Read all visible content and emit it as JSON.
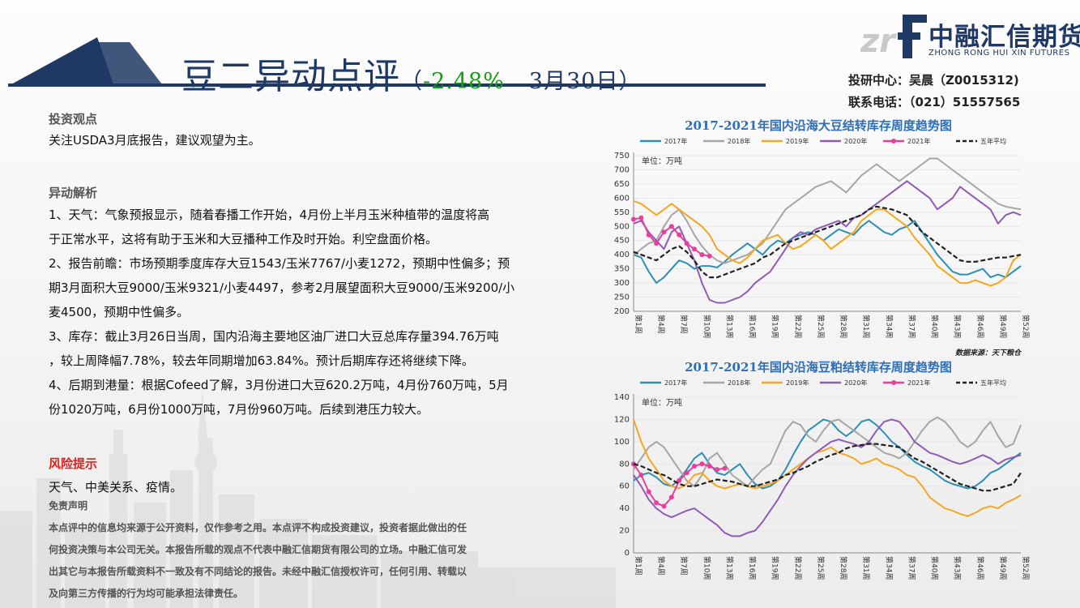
{
  "header": {
    "title": "豆二异动点评",
    "paren_open": "（",
    "change_pct": "-2.48%",
    "date": "3月30日",
    "paren_close": "）"
  },
  "logo": {
    "cn": "中融汇信期货",
    "en": "ZHONG RONG HUI XIN FUTURES"
  },
  "contact": {
    "analyst": "投研中心：吴晨（Z0015312)",
    "phone": "联系电话：（021）51557565"
  },
  "view": {
    "heading": "投资观点",
    "text": "关注USDA3月底报告，建议观望为主。"
  },
  "analysis": {
    "heading": "异动解析",
    "lines": [
      "1、天气：气象预报显示，随着春播工作开始，4月份上半月玉米种植带的温度将高",
      "于正常水平，这将有助于玉米和大豆播种工作及时开始。利空盘面价格。",
      "2、报告前瞻：市场预期季度库存大豆1543/玉米7767/小麦1272，预期中性偏多；预",
      "期3月面积大豆9000/玉米9321/小麦4497，参考2月展望面积大豆9000/玉米9200/小",
      "麦4500，预期中性偏多。",
      "3、库存：截止3月26日当周，国内沿海主要地区油厂进口大豆总库存量394.76万吨",
      "，较上周降幅7.78%，较去年同期增加63.84%。预计后期库存还将继续下降。",
      "4、后期到港量：根据Cofeed了解，3月份进口大豆620.2万吨，4月份760万吨，5月",
      "份1020万吨，6月份1000万吨，7月份960万吨。后续到港压力较大。"
    ]
  },
  "risk": {
    "heading": "风险提示",
    "text": "天气、中美关系、疫情。"
  },
  "disclaimer": {
    "heading": "免责声明",
    "lines": [
      "本点评中的信息均来源于公开资料，仅作参考之用。本点评不构成投资建议，投资者据此做出的任",
      "何投资决策与本公司无关。本报告所载的观点不代表中融汇信期货有限公司的立场。中融汇信可发",
      "出其它与本报告所载资料不一致及有不同结论的报告。未经中融汇信授权许可，任何引用、转载以",
      "及向第三方传播的行为均可能承担法律责任。"
    ]
  },
  "colors": {
    "navy": "#1f3864",
    "green": "#10a010",
    "red": "#e02020",
    "s2017": "#2e8fb5",
    "s2018": "#a6a6a6",
    "s2019": "#f5a623",
    "s2020": "#8e5bb5",
    "s2021": "#e83e9c",
    "avg": "#222222"
  },
  "chart_data": [
    {
      "type": "line",
      "title": "2017-2021年国内沿海大豆结转库存周度趋势图",
      "unit_label": "单位：万吨",
      "source": "数据来源：天下粮仓",
      "ylim": [
        200,
        750
      ],
      "yticks": [
        200,
        250,
        300,
        350,
        400,
        450,
        500,
        550,
        600,
        650,
        700,
        750
      ],
      "x_count": 52,
      "x_tick_labels": [
        "第1周",
        "第4周",
        "第7周",
        "第10周",
        "第13周",
        "第16周",
        "第19周",
        "第22周",
        "第25周",
        "第28周",
        "第31周",
        "第34周",
        "第37周",
        "第40周",
        "第43周",
        "第46周",
        "第49周",
        "第52周"
      ],
      "legend": [
        "2017年",
        "2018年",
        "2019年",
        "2020年",
        "2021年",
        "五年平均"
      ],
      "series": [
        {
          "name": "2017年",
          "values": [
            400,
            390,
            340,
            300,
            320,
            350,
            380,
            370,
            350,
            360,
            360,
            355,
            375,
            400,
            420,
            440,
            420,
            400,
            430,
            450,
            440,
            460,
            470,
            480,
            470,
            450,
            470,
            490,
            480,
            470,
            500,
            520,
            500,
            480,
            470,
            490,
            500,
            520,
            480,
            440,
            400,
            370,
            340,
            330,
            330,
            340,
            350,
            320,
            330,
            320,
            340,
            360
          ]
        },
        {
          "name": "2018年",
          "values": [
            400,
            420,
            440,
            450,
            500,
            540,
            560,
            520,
            470,
            430,
            400,
            380,
            370,
            380,
            390,
            400,
            420,
            440,
            480,
            520,
            560,
            580,
            600,
            620,
            640,
            650,
            660,
            640,
            620,
            650,
            680,
            700,
            720,
            700,
            680,
            660,
            680,
            700,
            720,
            740,
            740,
            720,
            700,
            680,
            660,
            640,
            620,
            600,
            580,
            570,
            565,
            560
          ]
        },
        {
          "name": "2019年",
          "values": [
            590,
            580,
            560,
            540,
            560,
            580,
            560,
            540,
            520,
            500,
            470,
            420,
            400,
            380,
            370,
            390,
            420,
            450,
            460,
            470,
            440,
            420,
            430,
            450,
            470,
            450,
            420,
            440,
            460,
            480,
            520,
            540,
            560,
            560,
            540,
            520,
            500,
            460,
            430,
            400,
            360,
            340,
            320,
            300,
            300,
            310,
            300,
            290,
            300,
            320,
            380,
            400
          ]
        },
        {
          "name": "2020年",
          "values": [
            510,
            520,
            480,
            450,
            420,
            480,
            500,
            440,
            380,
            300,
            240,
            230,
            230,
            240,
            250,
            270,
            300,
            320,
            340,
            380,
            420,
            460,
            480,
            470,
            490,
            500,
            510,
            520,
            500,
            530,
            540,
            560,
            580,
            600,
            620,
            640,
            660,
            640,
            620,
            600,
            560,
            580,
            600,
            640,
            620,
            600,
            580,
            560,
            510,
            540,
            550,
            540
          ]
        },
        {
          "name": "2021年",
          "values": [
            525,
            530,
            470,
            440,
            480,
            500,
            470,
            440,
            420,
            400,
            395
          ]
        },
        {
          "name": "五年平均",
          "values": [
            410,
            400,
            390,
            380,
            400,
            420,
            430,
            410,
            380,
            340,
            320,
            320,
            330,
            340,
            350,
            360,
            370,
            390,
            400,
            420,
            440,
            450,
            460,
            470,
            480,
            490,
            500,
            510,
            520,
            530,
            540,
            560,
            570,
            565,
            560,
            550,
            540,
            510,
            480,
            460,
            440,
            420,
            400,
            380,
            375,
            375,
            380,
            385,
            390,
            390,
            395,
            400
          ]
        }
      ]
    },
    {
      "type": "line",
      "title": "2017-2021年国内沿海豆粕结转库存周度趋势图",
      "unit_label": "单位：万吨",
      "ylim": [
        0,
        140
      ],
      "yticks": [
        0,
        20,
        40,
        60,
        80,
        100,
        120,
        140
      ],
      "x_count": 52,
      "x_tick_labels": [
        "第1周",
        "第4周",
        "第7周",
        "第10周",
        "第13周",
        "第16周",
        "第19周",
        "第22周",
        "第25周",
        "第28周",
        "第31周",
        "第34周",
        "第37周",
        "第40周",
        "第43周",
        "第46周",
        "第49周",
        "第52周"
      ],
      "legend": [
        "2017年",
        "2018年",
        "2019年",
        "2020年",
        "2021年",
        "五年平均"
      ],
      "series": [
        {
          "name": "2017年",
          "values": [
            65,
            70,
            72,
            68,
            62,
            60,
            66,
            75,
            85,
            90,
            80,
            72,
            70,
            75,
            80,
            70,
            62,
            58,
            60,
            65,
            75,
            88,
            100,
            110,
            115,
            120,
            118,
            110,
            105,
            110,
            118,
            120,
            115,
            108,
            100,
            95,
            88,
            82,
            78,
            75,
            70,
            65,
            62,
            60,
            58,
            60,
            65,
            72,
            75,
            80,
            85,
            90
          ]
        },
        {
          "name": "2018年",
          "values": [
            75,
            85,
            95,
            100,
            95,
            85,
            75,
            65,
            60,
            70,
            85,
            90,
            80,
            70,
            65,
            60,
            68,
            75,
            80,
            95,
            110,
            118,
            115,
            105,
            100,
            110,
            118,
            120,
            115,
            110,
            105,
            100,
            95,
            90,
            88,
            85,
            90,
            100,
            110,
            118,
            122,
            118,
            110,
            100,
            95,
            100,
            110,
            118,
            105,
            95,
            98,
            115
          ]
        },
        {
          "name": "2019年",
          "values": [
            120,
            100,
            85,
            75,
            65,
            60,
            58,
            62,
            70,
            72,
            65,
            60,
            58,
            60,
            62,
            60,
            58,
            60,
            62,
            65,
            70,
            75,
            80,
            85,
            90,
            92,
            95,
            90,
            88,
            85,
            80,
            82,
            85,
            80,
            78,
            75,
            70,
            68,
            60,
            50,
            45,
            40,
            38,
            35,
            33,
            36,
            40,
            42,
            40,
            45,
            48,
            52
          ]
        },
        {
          "name": "2020年",
          "values": [
            70,
            60,
            48,
            40,
            35,
            32,
            35,
            38,
            40,
            35,
            30,
            25,
            18,
            15,
            15,
            18,
            20,
            28,
            38,
            48,
            60,
            70,
            78,
            85,
            90,
            95,
            100,
            102,
            100,
            98,
            95,
            100,
            110,
            118,
            120,
            118,
            110,
            100,
            95,
            90,
            88,
            85,
            82,
            80,
            82,
            85,
            88,
            85,
            80,
            84,
            86,
            88
          ]
        },
        {
          "name": "2021年",
          "values": [
            80,
            70,
            55,
            45,
            42,
            50,
            65,
            72,
            78,
            80,
            78,
            75,
            76
          ]
        },
        {
          "name": "五年平均",
          "values": [
            80,
            78,
            75,
            72,
            70,
            66,
            62,
            60,
            60,
            62,
            64,
            66,
            65,
            64,
            62,
            60,
            60,
            62,
            64,
            66,
            70,
            72,
            75,
            78,
            82,
            85,
            88,
            90,
            94,
            96,
            97,
            98,
            98,
            97,
            96,
            95,
            90,
            85,
            82,
            78,
            74,
            70,
            66,
            62,
            60,
            58,
            56,
            56,
            58,
            60,
            62,
            72
          ]
        }
      ]
    }
  ]
}
